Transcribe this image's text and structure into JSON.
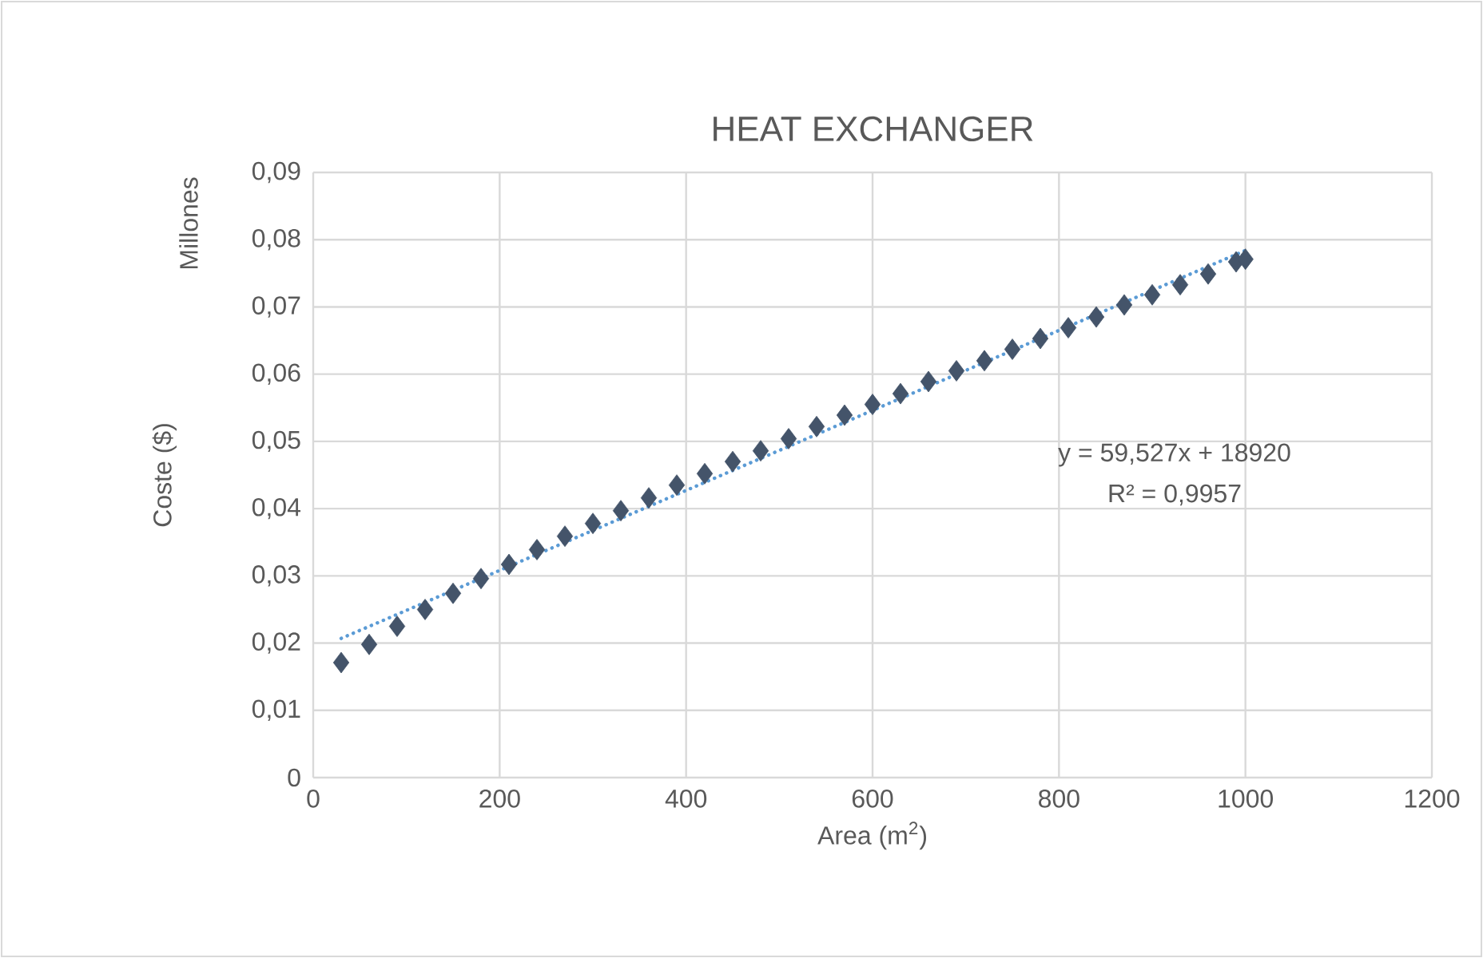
{
  "chart_data": {
    "type": "scatter",
    "title": "HEAT EXCHANGER",
    "xlabel": "Area (m$^{2}$)",
    "ylabel": "Coste ($)",
    "annotations": [
      "Millones",
      "y = 59,527x + 18920",
      "R² = 0,9957"
    ],
    "xlim": [
      0,
      1200
    ],
    "xticks": [
      0,
      200,
      400,
      600,
      800,
      1000,
      1200
    ],
    "ylim": [
      0,
      0.09
    ],
    "yticks": [
      {
        "value": 0,
        "label": "0"
      },
      {
        "value": 0.01,
        "label": "0,01"
      },
      {
        "value": 0.02,
        "label": "0,02"
      },
      {
        "value": 0.03,
        "label": "0,03"
      },
      {
        "value": 0.04,
        "label": "0,04"
      },
      {
        "value": 0.05,
        "label": "0,05"
      },
      {
        "value": 0.06,
        "label": "0,06"
      },
      {
        "value": 0.07,
        "label": "0,07"
      },
      {
        "value": 0.08,
        "label": "0,08"
      },
      {
        "value": 0.09,
        "label": "0,09"
      }
    ],
    "grid": true,
    "marker": "diamond",
    "series": [
      {
        "type": "line",
        "line_style": "dotted",
        "marker": "none",
        "color": "#5b9bd5",
        "x": [
          30,
          1000
        ],
        "values": [
          0.0207,
          0.0784
        ]
      },
      {
        "color": "#44546a",
        "x": [
          30,
          60,
          90,
          120,
          150,
          180,
          210,
          240,
          270,
          300,
          330,
          360,
          390,
          420,
          450,
          480,
          510,
          540,
          570,
          600,
          630,
          660,
          690,
          720,
          750,
          780,
          810,
          840,
          870,
          900,
          930,
          960,
          990,
          1000
        ],
        "values": [
          0.0171,
          0.0198,
          0.0225,
          0.025,
          0.0274,
          0.0296,
          0.0317,
          0.0339,
          0.0359,
          0.0378,
          0.0397,
          0.0416,
          0.0435,
          0.0452,
          0.047,
          0.0486,
          0.0504,
          0.0522,
          0.0539,
          0.0555,
          0.0571,
          0.0589,
          0.0605,
          0.062,
          0.0637,
          0.0653,
          0.0669,
          0.0685,
          0.0703,
          0.0718,
          0.0733,
          0.0749,
          0.0767,
          0.0771
        ]
      }
    ]
  }
}
